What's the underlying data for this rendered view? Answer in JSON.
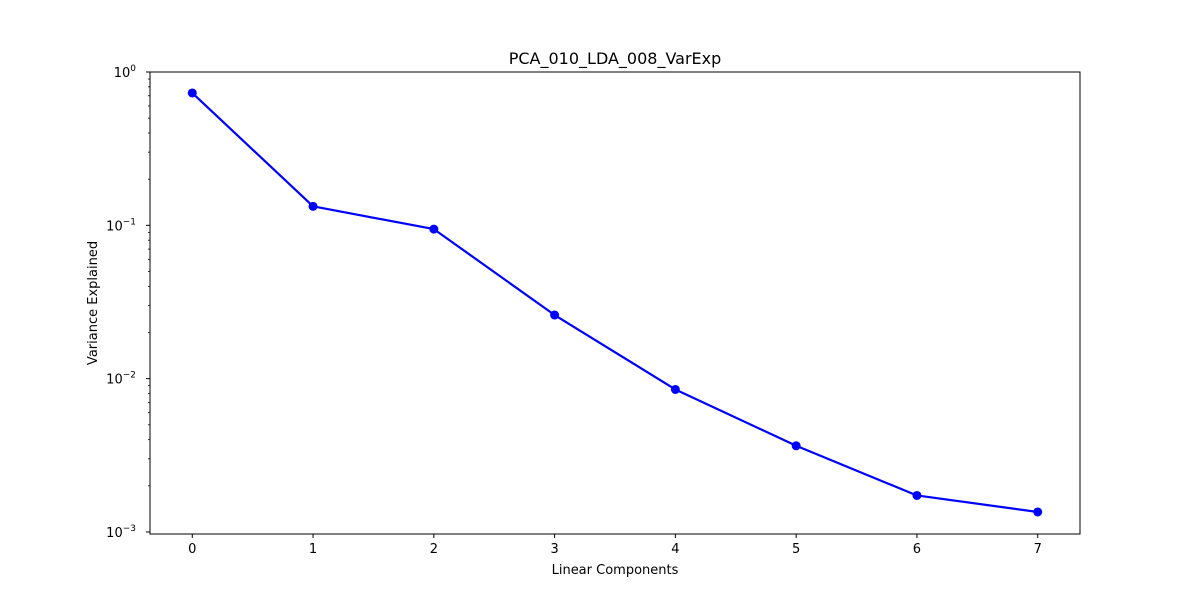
{
  "chart_data": {
    "type": "line",
    "title": "PCA_010_LDA_008_VarExp",
    "xlabel": "Linear Components",
    "ylabel": "Variance Explained",
    "yscale": "log",
    "xlim": [
      -0.35,
      7.35
    ],
    "ylim": [
      0.00097,
      1.0
    ],
    "x_ticks": [
      0,
      1,
      2,
      3,
      4,
      5,
      6,
      7
    ],
    "x_tick_labels": [
      "0",
      "1",
      "2",
      "3",
      "4",
      "5",
      "6",
      "7"
    ],
    "y_ticks": [
      0.001,
      0.01,
      0.1,
      1.0
    ],
    "y_tick_labels": [
      {
        "base": "10",
        "exp": "−3"
      },
      {
        "base": "10",
        "exp": "−2"
      },
      {
        "base": "10",
        "exp": "−1"
      },
      {
        "base": "10",
        "exp": "0"
      }
    ],
    "grid": false,
    "series": [
      {
        "name": "variance explained",
        "color": "#0000ff",
        "marker": "circle",
        "x": [
          0,
          1,
          2,
          3,
          4,
          5,
          6,
          7
        ],
        "values": [
          0.73,
          0.133,
          0.0945,
          0.026,
          0.0085,
          0.00365,
          0.00173,
          0.00135
        ]
      }
    ]
  }
}
